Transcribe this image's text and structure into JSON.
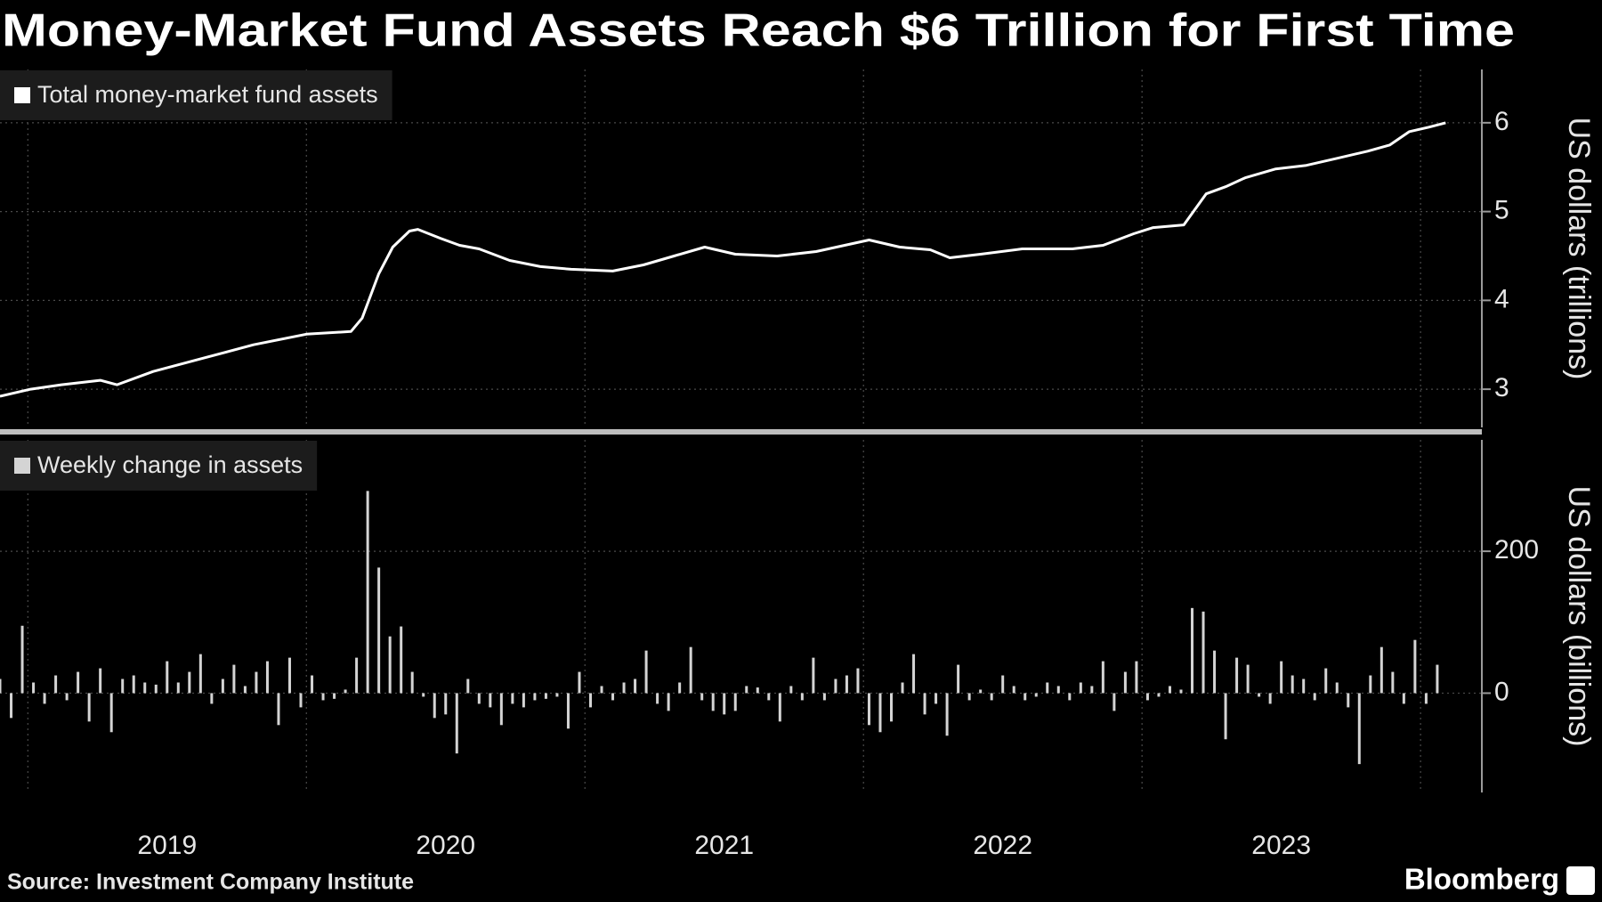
{
  "title": "Money-Market Fund Assets Reach $6 Trillion for First Time",
  "source": "Source: Investment Company Institute",
  "logo": "Bloomberg",
  "chart_data": [
    {
      "type": "line",
      "ylabel": "US dollars (trillions)",
      "series": [
        {
          "name": "Total money-market fund assets",
          "color": "#ffffff",
          "x": [
            2018.9,
            2019.01,
            2019.12,
            2019.26,
            2019.32,
            2019.45,
            2019.63,
            2019.81,
            2020.0,
            2020.16,
            2020.2,
            2020.26,
            2020.31,
            2020.37,
            2020.4,
            2020.48,
            2020.55,
            2020.62,
            2020.73,
            2020.84,
            2020.95,
            2021.1,
            2021.21,
            2021.32,
            2021.43,
            2021.54,
            2021.69,
            2021.83,
            2022.02,
            2022.13,
            2022.24,
            2022.31,
            2022.42,
            2022.57,
            2022.75,
            2022.86,
            2022.97,
            2023.04,
            2023.15,
            2023.23,
            2023.3,
            2023.37,
            2023.48,
            2023.59,
            2023.7,
            2023.81,
            2023.89,
            2023.96,
            2024.03,
            2024.09
          ],
          "values": [
            2.92,
            3.0,
            3.05,
            3.1,
            3.05,
            3.2,
            3.35,
            3.5,
            3.62,
            3.65,
            3.8,
            4.3,
            4.6,
            4.78,
            4.8,
            4.7,
            4.62,
            4.58,
            4.45,
            4.38,
            4.35,
            4.33,
            4.4,
            4.5,
            4.6,
            4.52,
            4.5,
            4.55,
            4.68,
            4.6,
            4.57,
            4.48,
            4.52,
            4.58,
            4.58,
            4.62,
            4.75,
            4.82,
            4.85,
            5.2,
            5.28,
            5.38,
            5.48,
            5.52,
            5.6,
            5.68,
            5.75,
            5.9,
            5.95,
            6.0
          ]
        }
      ],
      "xlim": [
        2018.9,
        2024.22
      ],
      "xgrid": [
        2019,
        2020,
        2021,
        2022,
        2023,
        2024
      ],
      "ylim": [
        2.57,
        6.6
      ],
      "yticks": [
        3,
        4,
        5,
        6
      ],
      "grid": true
    },
    {
      "type": "bar",
      "ylabel": "US dollars (billions)",
      "series": [
        {
          "name": "Weekly change in assets",
          "color": "#d4d4d4",
          "x": [
            2018.9,
            2018.94,
            2018.98,
            2019.02,
            2019.06,
            2019.1,
            2019.14,
            2019.18,
            2019.22,
            2019.26,
            2019.3,
            2019.34,
            2019.38,
            2019.42,
            2019.46,
            2019.5,
            2019.54,
            2019.58,
            2019.62,
            2019.66,
            2019.7,
            2019.74,
            2019.78,
            2019.82,
            2019.86,
            2019.9,
            2019.94,
            2019.98,
            2020.02,
            2020.06,
            2020.1,
            2020.14,
            2020.18,
            2020.22,
            2020.26,
            2020.3,
            2020.34,
            2020.38,
            2020.42,
            2020.46,
            2020.5,
            2020.54,
            2020.58,
            2020.62,
            2020.66,
            2020.7,
            2020.74,
            2020.78,
            2020.82,
            2020.86,
            2020.9,
            2020.94,
            2020.98,
            2021.02,
            2021.06,
            2021.1,
            2021.14,
            2021.18,
            2021.22,
            2021.26,
            2021.3,
            2021.34,
            2021.38,
            2021.42,
            2021.46,
            2021.5,
            2021.54,
            2021.58,
            2021.62,
            2021.66,
            2021.7,
            2021.74,
            2021.78,
            2021.82,
            2021.86,
            2021.9,
            2021.94,
            2021.98,
            2022.02,
            2022.06,
            2022.1,
            2022.14,
            2022.18,
            2022.22,
            2022.26,
            2022.3,
            2022.34,
            2022.38,
            2022.42,
            2022.46,
            2022.5,
            2022.54,
            2022.58,
            2022.62,
            2022.66,
            2022.7,
            2022.74,
            2022.78,
            2022.82,
            2022.86,
            2022.9,
            2022.94,
            2022.98,
            2023.02,
            2023.06,
            2023.1,
            2023.14,
            2023.18,
            2023.22,
            2023.26,
            2023.3,
            2023.34,
            2023.38,
            2023.42,
            2023.46,
            2023.5,
            2023.54,
            2023.58,
            2023.62,
            2023.66,
            2023.7,
            2023.74,
            2023.78,
            2023.82,
            2023.86,
            2023.9,
            2023.94,
            2023.98,
            2024.02,
            2024.06
          ],
          "values": [
            20,
            -35,
            95,
            15,
            -15,
            25,
            -10,
            30,
            -40,
            35,
            -55,
            20,
            25,
            15,
            12,
            45,
            15,
            30,
            55,
            -15,
            20,
            40,
            10,
            30,
            45,
            -45,
            50,
            -20,
            25,
            -10,
            -8,
            5,
            50,
            285,
            177,
            80,
            94,
            30,
            -5,
            -35,
            -30,
            -85,
            20,
            -15,
            -20,
            -45,
            -15,
            -20,
            -10,
            -8,
            -5,
            -50,
            30,
            -20,
            10,
            -10,
            15,
            20,
            60,
            -15,
            -25,
            15,
            65,
            -10,
            -25,
            -30,
            -25,
            10,
            8,
            -10,
            -40,
            10,
            -10,
            50,
            -10,
            20,
            25,
            35,
            -45,
            -55,
            -40,
            15,
            55,
            -30,
            -15,
            -60,
            40,
            -10,
            5,
            -10,
            25,
            10,
            -10,
            -5,
            15,
            10,
            -10,
            15,
            10,
            45,
            -25,
            30,
            45,
            -10,
            -5,
            10,
            5,
            120,
            115,
            60,
            -65,
            50,
            40,
            -5,
            -15,
            45,
            25,
            20,
            -10,
            35,
            15,
            -20,
            -100,
            25,
            65,
            30,
            -15,
            75,
            -15,
            40
          ]
        }
      ],
      "xlim": [
        2018.9,
        2024.22
      ],
      "xgrid": [
        2019,
        2020,
        2021,
        2022,
        2023,
        2024
      ],
      "xticks": [
        {
          "value": 2019.5,
          "label": "2019"
        },
        {
          "value": 2020.5,
          "label": "2020"
        },
        {
          "value": 2021.5,
          "label": "2021"
        },
        {
          "value": 2022.5,
          "label": "2022"
        },
        {
          "value": 2023.5,
          "label": "2023"
        }
      ],
      "ylim": [
        -140,
        357
      ],
      "yticks": [
        0,
        200
      ],
      "grid": true
    }
  ]
}
